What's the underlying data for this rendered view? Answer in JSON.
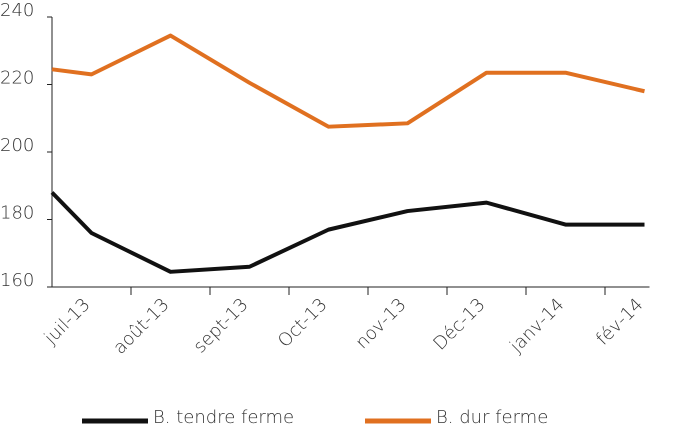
{
  "chart_data": {
    "type": "line",
    "categories": [
      null,
      "juil-13",
      "août-13",
      "sept-13",
      "Oct-13",
      "nov-13",
      "Déc-13",
      "janv-14",
      "fév-14"
    ],
    "series": [
      {
        "name": "B. tendre ferme",
        "color": "#111111",
        "values": [
          188,
          176,
          164.5,
          166,
          177,
          182.5,
          185,
          178.5,
          178.5
        ]
      },
      {
        "name": "B. dur ferme",
        "color": "#e07020",
        "values": [
          224.5,
          223,
          234.5,
          220.5,
          207.5,
          208.5,
          223.5,
          223.5,
          218
        ]
      }
    ],
    "ylim": [
      160,
      240
    ],
    "yticks": [
      160,
      180,
      200,
      220,
      240
    ],
    "legend": "bottom"
  }
}
